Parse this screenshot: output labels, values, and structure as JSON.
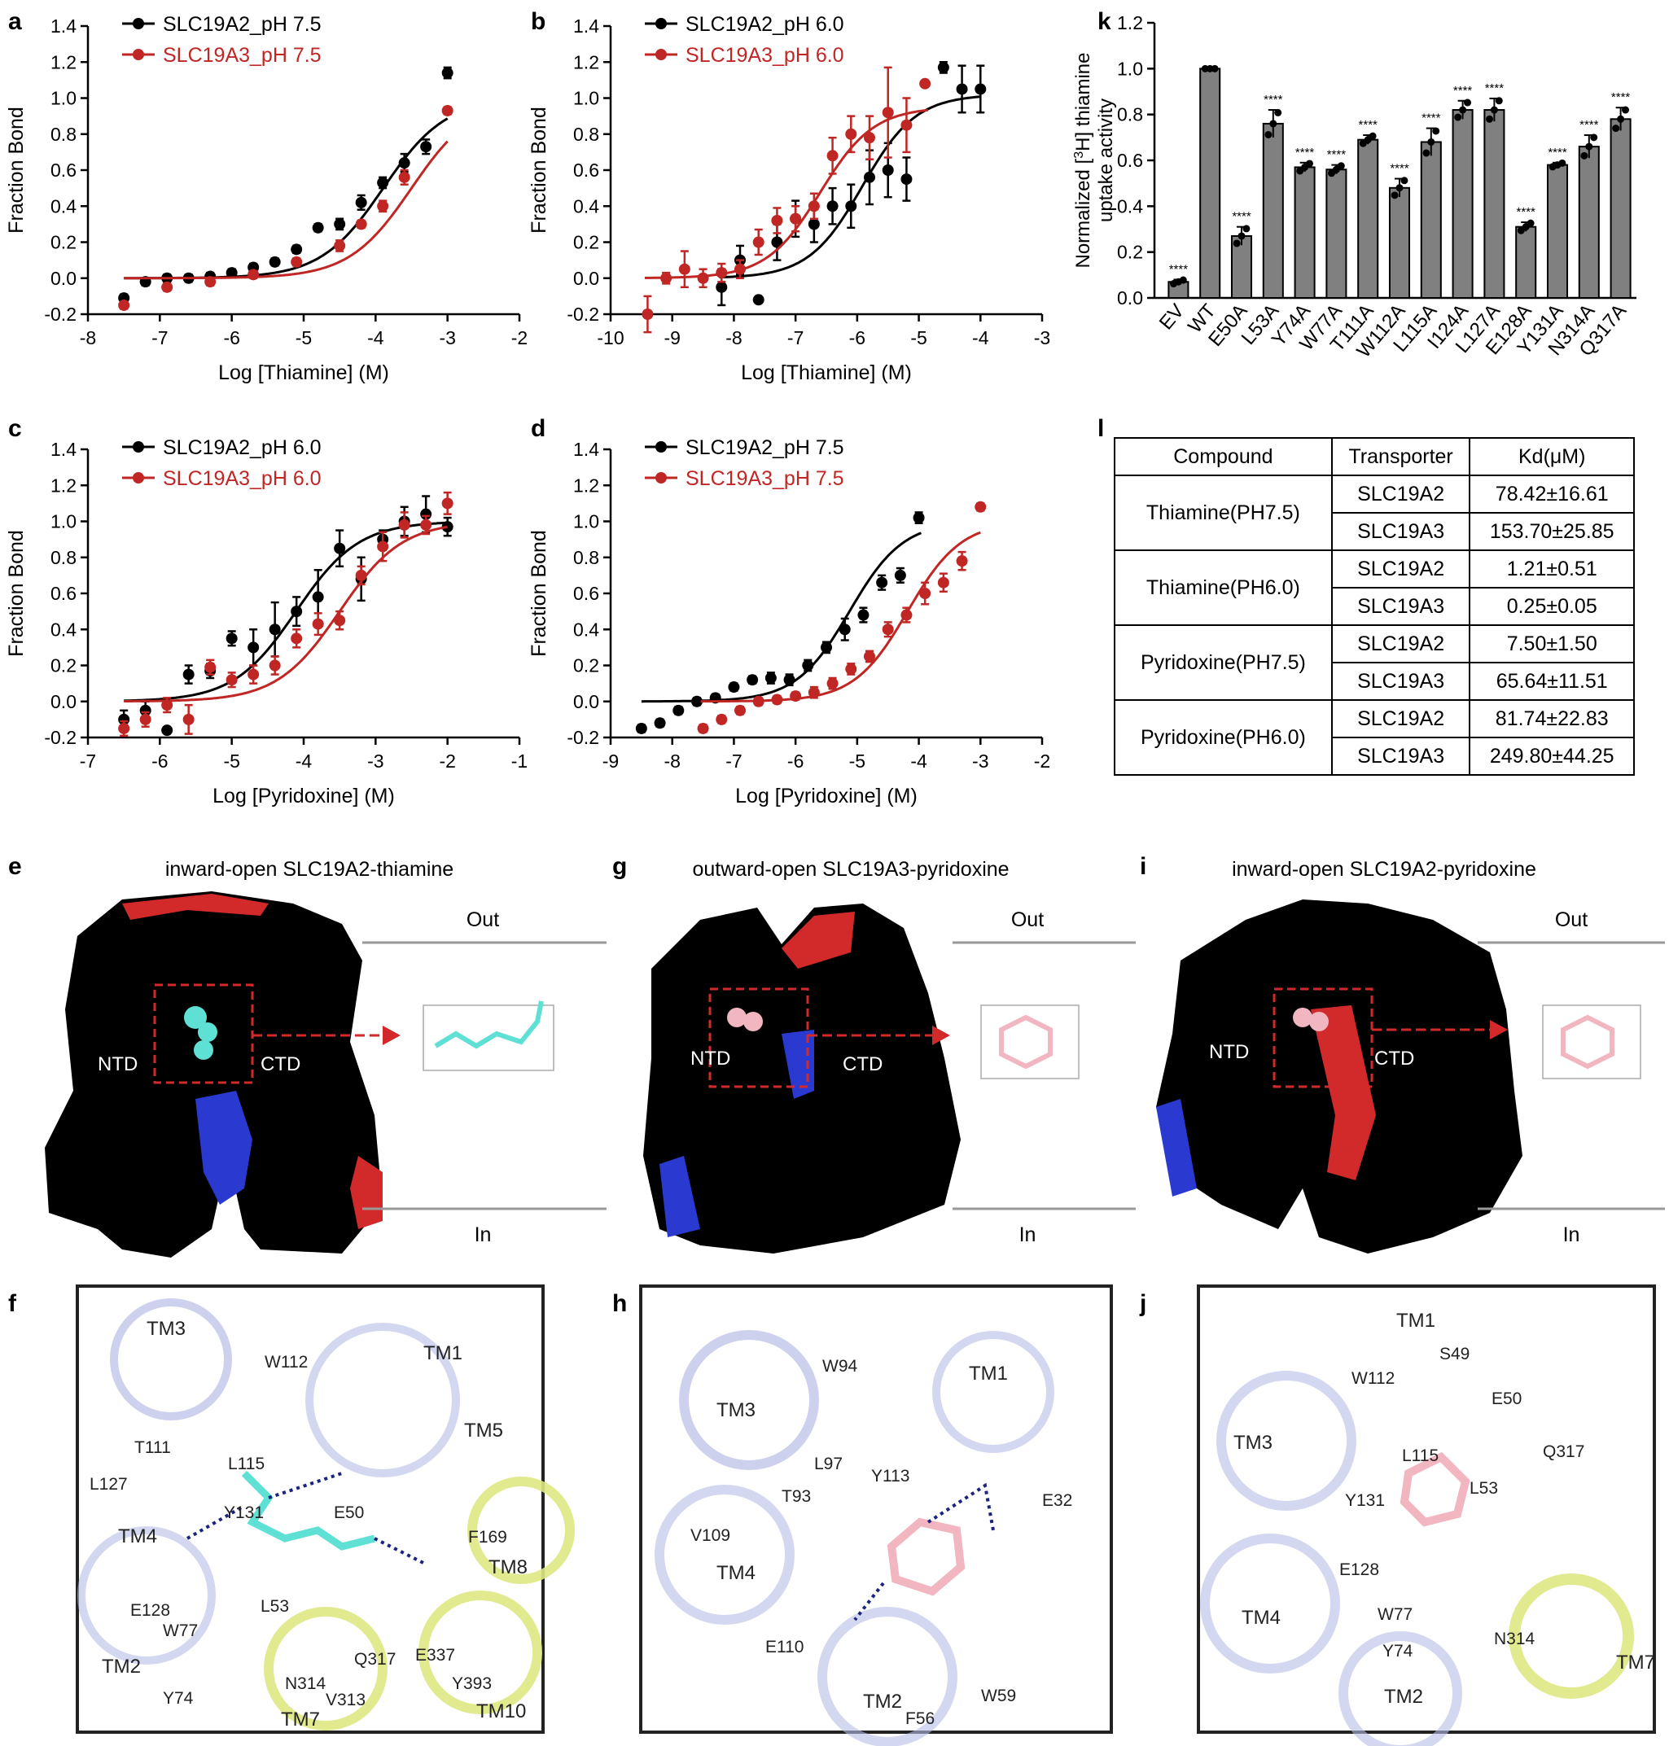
{
  "panels": {
    "a": "a",
    "b": "b",
    "c": "c",
    "d": "d",
    "e": "e",
    "f": "f",
    "g": "g",
    "h": "h",
    "i": "i",
    "j": "j",
    "k": "k",
    "l": "l"
  },
  "chart_data": [
    {
      "id": "a",
      "type": "scatter",
      "xlabel": "Log [Thiamine] (M)",
      "ylabel": "Fraction Bond",
      "xlim": [
        -8,
        -2
      ],
      "ylim": [
        -0.2,
        1.4
      ],
      "xticks": [
        -8,
        -7,
        -6,
        -5,
        -4,
        -3,
        -2
      ],
      "yticks": [
        -0.2,
        0.0,
        0.2,
        0.4,
        0.6,
        0.8,
        1.0,
        1.2,
        1.4
      ],
      "ytick_labels": [
        "-0.2",
        "0.0",
        "0.2",
        "0.4",
        "0.6",
        "0.8",
        "1.0",
        "1.2",
        "1.4"
      ],
      "series": [
        {
          "name": "SLC19A2_pH 7.5",
          "color": "#000000",
          "x": [
            -7.5,
            -7.2,
            -6.9,
            -6.6,
            -6.3,
            -6.0,
            -5.7,
            -5.4,
            -5.1,
            -4.8,
            -4.5,
            -4.2,
            -3.9,
            -3.6,
            -3.3,
            -3.0
          ],
          "y": [
            -0.11,
            -0.02,
            0.0,
            0.0,
            0.01,
            0.03,
            0.06,
            0.09,
            0.16,
            0.28,
            0.3,
            0.42,
            0.53,
            0.64,
            0.73,
            1.14
          ],
          "err": [
            0.02,
            0.02,
            0.02,
            0.02,
            0.02,
            0.02,
            0.02,
            0.02,
            0.02,
            0.02,
            0.03,
            0.04,
            0.03,
            0.05,
            0.04,
            0.03
          ],
          "fit": {
            "bottom": 0.0,
            "top": 1.0,
            "logEC50": -3.893,
            "hill": 1
          }
        },
        {
          "name": "SLC19A3_pH 7.5",
          "color": "#c02624",
          "x": [
            -7.5,
            -6.9,
            -6.3,
            -5.7,
            -5.1,
            -4.5,
            -4.2,
            -3.9,
            -3.6,
            -3.0
          ],
          "y": [
            -0.15,
            -0.05,
            -0.02,
            0.02,
            0.09,
            0.18,
            0.3,
            0.4,
            0.56,
            0.93
          ],
          "err": [
            0.02,
            0.02,
            0.02,
            0.02,
            0.02,
            0.03,
            0.02,
            0.03,
            0.04,
            0.02
          ],
          "fit": {
            "bottom": 0.0,
            "top": 1.0,
            "logEC50": -3.5,
            "hill": 1
          }
        }
      ]
    },
    {
      "id": "b",
      "type": "scatter",
      "xlabel": "Log [Thiamine] (M)",
      "ylabel": "Fraction Bond",
      "xlim": [
        -10,
        -3
      ],
      "ylim": [
        -0.2,
        1.4
      ],
      "xticks": [
        -10,
        -9,
        -8,
        -7,
        -6,
        -5,
        -4,
        -3
      ],
      "yticks": [
        -0.2,
        0.0,
        0.2,
        0.4,
        0.6,
        0.8,
        1.0,
        1.2,
        1.4
      ],
      "ytick_labels": [
        "-0.2",
        "0.0",
        "0.2",
        "0.4",
        "0.6",
        "0.8",
        "1.0",
        "1.2",
        "1.4"
      ],
      "series": [
        {
          "name": "SLC19A2_pH 6.0",
          "color": "#000000",
          "x": [
            -8.2,
            -7.9,
            -7.6,
            -7.3,
            -7.0,
            -6.7,
            -6.4,
            -6.1,
            -5.8,
            -5.5,
            -5.2,
            -4.6,
            -4.3,
            -4.0
          ],
          "y": [
            -0.05,
            0.1,
            -0.12,
            0.2,
            0.33,
            0.3,
            0.4,
            0.4,
            0.56,
            0.6,
            0.55,
            1.17,
            1.05,
            1.05
          ],
          "err": [
            0.1,
            0.08,
            0.0,
            0.1,
            0.1,
            0.1,
            0.1,
            0.12,
            0.15,
            0.15,
            0.12,
            0.03,
            0.13,
            0.13
          ],
          "fit": {
            "bottom": 0.0,
            "top": 1.02,
            "logEC50": -5.917,
            "hill": 1
          }
        },
        {
          "name": "SLC19A3_pH 6.0",
          "color": "#c02624",
          "x": [
            -9.4,
            -9.1,
            -8.8,
            -8.5,
            -8.2,
            -7.9,
            -7.6,
            -7.3,
            -7.0,
            -6.7,
            -6.4,
            -6.1,
            -5.8,
            -5.5,
            -5.2,
            -4.9
          ],
          "y": [
            -0.2,
            0.0,
            0.05,
            0.0,
            0.03,
            0.05,
            0.2,
            0.32,
            0.33,
            0.4,
            0.68,
            0.8,
            0.78,
            0.92,
            0.85,
            1.08
          ],
          "err": [
            0.1,
            0.03,
            0.1,
            0.05,
            0.05,
            0.05,
            0.07,
            0.07,
            0.07,
            0.07,
            0.1,
            0.1,
            0.12,
            0.25,
            0.15,
            0.0
          ],
          "fit": {
            "bottom": 0.0,
            "top": 0.95,
            "logEC50": -6.602,
            "hill": 1
          }
        }
      ]
    },
    {
      "id": "c",
      "type": "scatter",
      "xlabel": "Log [Pyridoxine] (M)",
      "ylabel": "Fraction Bond",
      "xlim": [
        -7,
        -1
      ],
      "ylim": [
        -0.2,
        1.4
      ],
      "xticks": [
        -7,
        -6,
        -5,
        -4,
        -3,
        -2,
        -1
      ],
      "yticks": [
        -0.2,
        0.0,
        0.2,
        0.4,
        0.6,
        0.8,
        1.0,
        1.2,
        1.4
      ],
      "ytick_labels": [
        "-0.2",
        "0.0",
        "0.2",
        "0.4",
        "0.6",
        "0.8",
        "1.0",
        "1.2",
        "1.4"
      ],
      "series": [
        {
          "name": "SLC19A2_pH 6.0",
          "color": "#000000",
          "x": [
            -6.5,
            -6.2,
            -5.9,
            -5.6,
            -5.3,
            -5.0,
            -4.7,
            -4.4,
            -4.1,
            -3.8,
            -3.5,
            -3.2,
            -2.9,
            -2.6,
            -2.3,
            -2.0
          ],
          "y": [
            -0.1,
            -0.05,
            -0.16,
            0.15,
            0.17,
            0.35,
            0.3,
            0.4,
            0.5,
            0.58,
            0.85,
            0.68,
            0.9,
            1.0,
            1.04,
            0.97
          ],
          "err": [
            0.05,
            0.05,
            0.0,
            0.05,
            0.04,
            0.04,
            0.1,
            0.15,
            0.08,
            0.15,
            0.1,
            0.12,
            0.05,
            0.08,
            0.1,
            0.05
          ],
          "fit": {
            "bottom": 0.0,
            "top": 1.0,
            "logEC50": -4.106,
            "hill": 1
          }
        },
        {
          "name": "SLC19A3_pH 6.0",
          "color": "#c02624",
          "x": [
            -6.5,
            -6.2,
            -5.9,
            -5.6,
            -5.3,
            -5.0,
            -4.7,
            -4.4,
            -4.1,
            -3.8,
            -3.5,
            -3.2,
            -2.9,
            -2.6,
            -2.3,
            -2.0
          ],
          "y": [
            -0.15,
            -0.1,
            -0.02,
            -0.1,
            0.19,
            0.12,
            0.15,
            0.2,
            0.35,
            0.43,
            0.45,
            0.7,
            0.86,
            0.98,
            0.98,
            1.1
          ],
          "err": [
            0.04,
            0.04,
            0.04,
            0.08,
            0.04,
            0.04,
            0.05,
            0.05,
            0.05,
            0.06,
            0.05,
            0.05,
            0.08,
            0.07,
            0.05,
            0.06
          ],
          "fit": {
            "bottom": 0.0,
            "top": 1.0,
            "logEC50": -3.5,
            "hill": 1
          }
        }
      ]
    },
    {
      "id": "d",
      "type": "scatter",
      "xlabel": "Log [Pyridoxine] (M)",
      "ylabel": "Fraction Bond",
      "xlim": [
        -9,
        -2
      ],
      "ylim": [
        -0.2,
        1.4
      ],
      "xticks": [
        -9,
        -8,
        -7,
        -6,
        -5,
        -4,
        -3,
        -2
      ],
      "yticks": [
        -0.2,
        0.0,
        0.2,
        0.4,
        0.6,
        0.8,
        1.0,
        1.2,
        1.4
      ],
      "ytick_labels": [
        "-0.2",
        "0.0",
        "0.2",
        "0.4",
        "0.6",
        "0.8",
        "1.0",
        "1.2",
        "1.4"
      ],
      "series": [
        {
          "name": "SLC19A2_pH 7.5",
          "color": "#000000",
          "x": [
            -8.5,
            -8.2,
            -7.9,
            -7.6,
            -7.3,
            -7.0,
            -6.7,
            -6.4,
            -6.1,
            -5.8,
            -5.5,
            -5.2,
            -4.9,
            -4.6,
            -4.3,
            -4.0
          ],
          "y": [
            -0.15,
            -0.12,
            -0.05,
            0.0,
            0.02,
            0.08,
            0.12,
            0.13,
            0.12,
            0.2,
            0.3,
            0.4,
            0.48,
            0.66,
            0.7,
            1.02
          ],
          "err": [
            0.02,
            0.02,
            0.02,
            0.02,
            0.02,
            0.02,
            0.02,
            0.03,
            0.03,
            0.03,
            0.03,
            0.06,
            0.04,
            0.04,
            0.04,
            0.03
          ],
          "fit": {
            "bottom": 0.0,
            "top": 1.0,
            "logEC50": -5.125,
            "hill": 1
          }
        },
        {
          "name": "SLC19A3_pH 7.5",
          "color": "#c02624",
          "x": [
            -7.5,
            -7.2,
            -6.9,
            -6.6,
            -6.3,
            -6.0,
            -5.7,
            -5.4,
            -5.1,
            -4.8,
            -4.5,
            -4.2,
            -3.9,
            -3.6,
            -3.3,
            -3.0
          ],
          "y": [
            -0.15,
            -0.1,
            -0.05,
            0.0,
            0.01,
            0.03,
            0.05,
            0.1,
            0.18,
            0.25,
            0.4,
            0.48,
            0.6,
            0.66,
            0.78,
            1.08
          ],
          "err": [
            0.02,
            0.02,
            0.02,
            0.02,
            0.02,
            0.02,
            0.03,
            0.03,
            0.03,
            0.03,
            0.04,
            0.04,
            0.06,
            0.05,
            0.05,
            0.02
          ],
          "fit": {
            "bottom": 0.0,
            "top": 1.0,
            "logEC50": -4.183,
            "hill": 1
          }
        }
      ]
    },
    {
      "id": "k",
      "type": "bar",
      "ylabel_parts": [
        "Normalized [",
        "3",
        "H] thiamine",
        "uptake activity"
      ],
      "ylim": [
        0.0,
        1.2
      ],
      "yticks": [
        0.0,
        0.2,
        0.4,
        0.6,
        0.8,
        1.0,
        1.2
      ],
      "ytick_labels": [
        "0.0",
        "0.2",
        "0.4",
        "0.6",
        "0.8",
        "1.0",
        "1.2"
      ],
      "categories": [
        "EV",
        "WT",
        "E50A",
        "L53A",
        "Y74A",
        "W77A",
        "T111A",
        "W112A",
        "L115A",
        "I124A",
        "L127A",
        "E128A",
        "Y131A",
        "N314A",
        "Q317A"
      ],
      "values": [
        0.07,
        1.0,
        0.27,
        0.76,
        0.57,
        0.56,
        0.69,
        0.48,
        0.68,
        0.82,
        0.82,
        0.31,
        0.58,
        0.66,
        0.78
      ],
      "errors": [
        0.01,
        0.0,
        0.04,
        0.06,
        0.02,
        0.02,
        0.02,
        0.04,
        0.06,
        0.04,
        0.05,
        0.02,
        0.01,
        0.05,
        0.05
      ],
      "significance": [
        "****",
        "",
        "****",
        "****",
        "****",
        "****",
        "****",
        "****",
        "****",
        "****",
        "****",
        "****",
        "****",
        "****",
        "****"
      ],
      "bar_color": "#808080"
    }
  ],
  "table": {
    "headers": [
      "Compound",
      "Transporter",
      "Kd(μM)"
    ],
    "rows": [
      {
        "compound": "Thiamine(PH7.5)",
        "a2": "SLC19A2",
        "a2kd": "78.42±16.61",
        "a3": "SLC19A3",
        "a3kd": "153.70±25.85"
      },
      {
        "compound": "Thiamine(PH6.0)",
        "a2": "SLC19A2",
        "a2kd": "1.21±0.51",
        "a3": "SLC19A3",
        "a3kd": "0.25±0.05"
      },
      {
        "compound": "Pyridoxine(PH7.5)",
        "a2": "SLC19A2",
        "a2kd": "7.50±1.50",
        "a3": "SLC19A3",
        "a3kd": "65.64±11.51"
      },
      {
        "compound": "Pyridoxine(PH6.0)",
        "a2": "SLC19A2",
        "a2kd": "81.74±22.83",
        "a3": "SLC19A3",
        "a3kd": "249.80±44.25"
      }
    ]
  },
  "structures": {
    "e_title": "inward-open  SLC19A2-thiamine",
    "g_title": "outward-open  SLC19A3-pyridoxine",
    "i_title": "inward-open  SLC19A2-pyridoxine",
    "out_label": "Out",
    "in_label": "In",
    "ntd_label": "NTD",
    "ctd_label": "CTD"
  },
  "residues": {
    "f": [
      "TM3",
      "W112",
      "TM1",
      "TM5",
      "T111",
      "L115",
      "L127",
      "Y131",
      "E50",
      "F169",
      "TM4",
      "TM8",
      "E128",
      "L53",
      "W77",
      "E337",
      "TM2",
      "Y74",
      "Q317",
      "N314",
      "Y393",
      "V313",
      "TM7",
      "TM10"
    ],
    "h": [
      "W94",
      "TM1",
      "TM3",
      "L97",
      "Y113",
      "T93",
      "E32",
      "V109",
      "TM4",
      "E110",
      "TM2",
      "W59",
      "F56"
    ],
    "j": [
      "TM1",
      "S49",
      "W112",
      "E50",
      "TM3",
      "L115",
      "Q317",
      "Y131",
      "L53",
      "E128",
      "TM4",
      "W77",
      "N314",
      "Y74",
      "TM7",
      "TM2"
    ]
  },
  "colors": {
    "black": "#000000",
    "red": "#c02624",
    "bar": "#808080",
    "ribbon": "#b8bde6",
    "ribbon_yellow": "#dfe884",
    "ligand_cyan": "#5fe0d4",
    "ligand_pink": "#f2b6c0"
  }
}
